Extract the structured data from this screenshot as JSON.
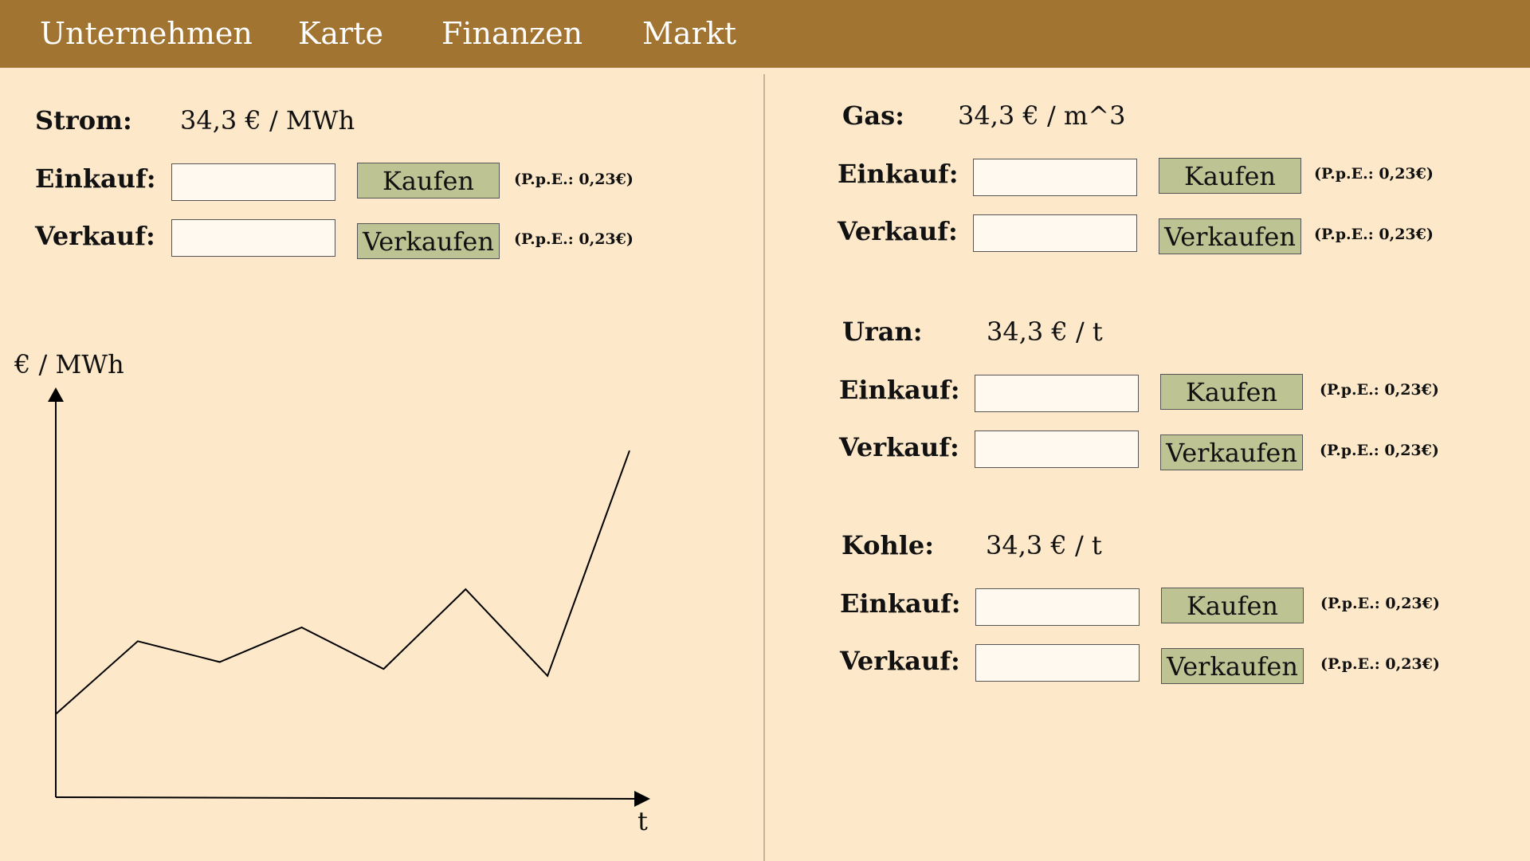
{
  "nav": {
    "items": [
      "Unternehmen",
      "Karte",
      "Finanzen",
      "Markt"
    ]
  },
  "commodities": [
    {
      "name": "Strom:",
      "price": "34,3 € / MWh",
      "buy_label": "Einkauf:",
      "sell_label": "Verkauf:",
      "buy_value": "",
      "sell_value": "",
      "buy_button": "Kaufen",
      "sell_button": "Verkaufen",
      "buy_note": "(P.p.E.: 0,23€)",
      "sell_note": "(P.p.E.: 0,23€)"
    },
    {
      "name": "Gas:",
      "price": "34,3 € / m^3",
      "buy_label": "Einkauf:",
      "sell_label": "Verkauf:",
      "buy_value": "",
      "sell_value": "",
      "buy_button": "Kaufen",
      "sell_button": "Verkaufen",
      "buy_note": "(P.p.E.: 0,23€)",
      "sell_note": "(P.p.E.: 0,23€)"
    },
    {
      "name": "Uran:",
      "price": "34,3 € / t",
      "buy_label": "Einkauf:",
      "sell_label": "Verkauf:",
      "buy_value": "",
      "sell_value": "",
      "buy_button": "Kaufen",
      "sell_button": "Verkaufen",
      "buy_note": "(P.p.E.: 0,23€)",
      "sell_note": "(P.p.E.: 0,23€)"
    },
    {
      "name": "Kohle:",
      "price": "34,3 € / t",
      "buy_label": "Einkauf:",
      "sell_label": "Verkauf:",
      "buy_value": "",
      "sell_value": "",
      "buy_button": "Kaufen",
      "sell_button": "Verkaufen",
      "buy_note": "(P.p.E.: 0,23€)",
      "sell_note": "(P.p.E.: 0,23€)"
    }
  ],
  "chart_data": {
    "type": "line",
    "title": "",
    "xlabel": "t",
    "ylabel": "€ / MWh",
    "x": [
      0,
      1,
      2,
      3,
      4,
      5,
      6,
      7
    ],
    "values": [
      24,
      45,
      39,
      49,
      37,
      60,
      35,
      100
    ],
    "ylim": [
      0,
      115
    ],
    "grid": false
  }
}
